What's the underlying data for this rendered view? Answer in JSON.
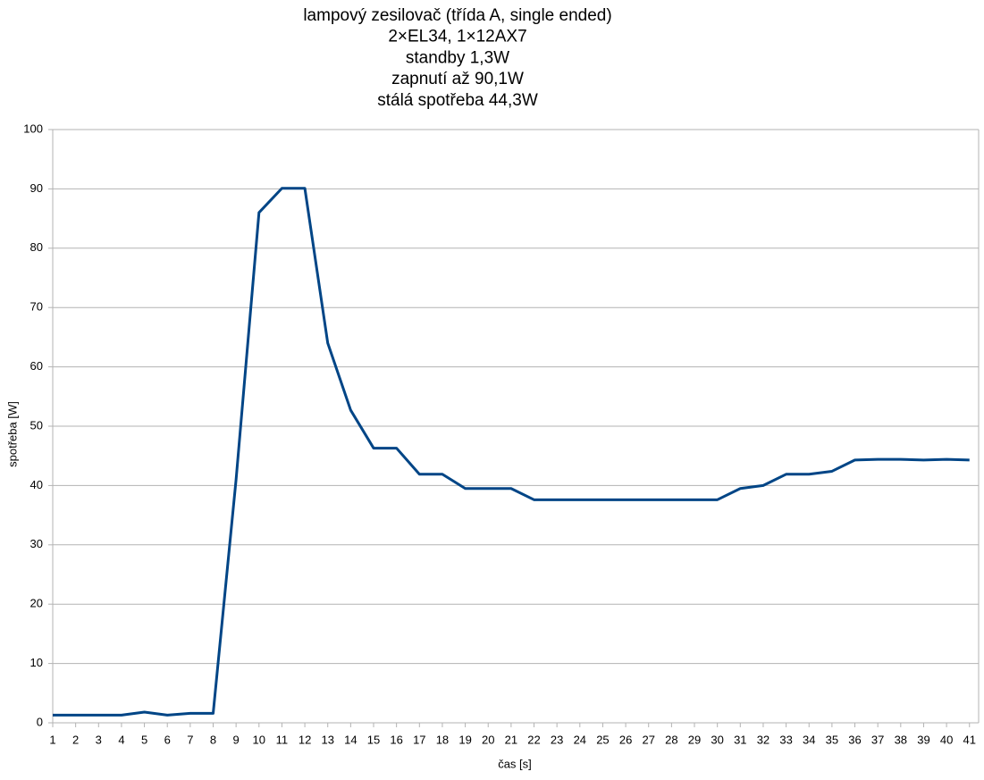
{
  "chart_data": {
    "type": "line",
    "title": [
      "lampový zesilovač (třída A, single ended)",
      "2×EL34, 1×12AX7",
      "standby 1,3W",
      "zapnutí až 90,1W",
      "stálá spotřeba 44,3W"
    ],
    "x_label": "čas [s]",
    "y_label": "spotřeba [W]",
    "x": [
      1,
      2,
      3,
      4,
      5,
      6,
      7,
      8,
      9,
      10,
      11,
      12,
      13,
      14,
      15,
      16,
      17,
      18,
      19,
      20,
      21,
      22,
      23,
      24,
      25,
      26,
      27,
      28,
      29,
      30,
      31,
      32,
      33,
      34,
      35,
      36,
      37,
      38,
      39,
      40,
      41
    ],
    "series": [
      {
        "color": "#004586",
        "values": [
          1.3,
          1.3,
          1.3,
          1.3,
          1.8,
          1.3,
          1.6,
          1.6,
          41,
          86,
          90.1,
          90.1,
          64,
          52.7,
          46.3,
          46.3,
          41.9,
          41.9,
          39.5,
          39.5,
          39.5,
          37.6,
          37.6,
          37.6,
          37.6,
          37.6,
          37.6,
          37.6,
          37.6,
          37.6,
          39.5,
          40,
          41.9,
          41.9,
          42.4,
          44.3,
          44.4,
          44.4,
          44.3,
          44.4,
          44.3
        ]
      }
    ],
    "xlim": [
      1,
      41.4
    ],
    "xticks": [
      1,
      2,
      3,
      4,
      5,
      6,
      7,
      8,
      9,
      10,
      11,
      12,
      13,
      14,
      15,
      16,
      17,
      18,
      19,
      20,
      21,
      22,
      23,
      24,
      25,
      26,
      27,
      28,
      29,
      30,
      31,
      32,
      33,
      34,
      35,
      36,
      37,
      38,
      39,
      40,
      41
    ],
    "ylim": [
      0,
      100
    ],
    "yticks": [
      0,
      10,
      20,
      30,
      40,
      50,
      60,
      70,
      80,
      90,
      100
    ],
    "grid": true
  }
}
